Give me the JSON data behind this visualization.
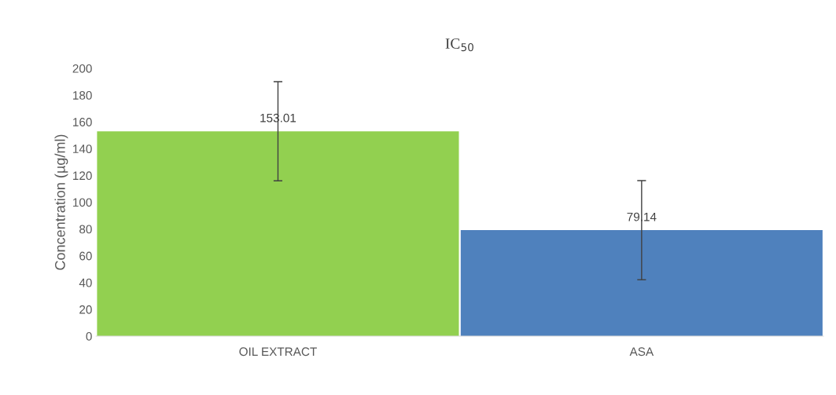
{
  "chart_data": {
    "type": "bar",
    "title": "IC$_{50}$",
    "ylabel": "Concentration (µg/ml)",
    "categories": [
      "OIL EXTRACT",
      "ASA"
    ],
    "values": [
      153.01,
      79.14
    ],
    "colors": [
      "#92d050",
      "#4f81bd"
    ],
    "errors": [
      37,
      37
    ],
    "data_labels": true,
    "ylim": [
      0,
      200
    ],
    "yticks": [
      0,
      20,
      40,
      60,
      80,
      100,
      120,
      140,
      160,
      180,
      200
    ],
    "grid": false,
    "legend": false
  }
}
